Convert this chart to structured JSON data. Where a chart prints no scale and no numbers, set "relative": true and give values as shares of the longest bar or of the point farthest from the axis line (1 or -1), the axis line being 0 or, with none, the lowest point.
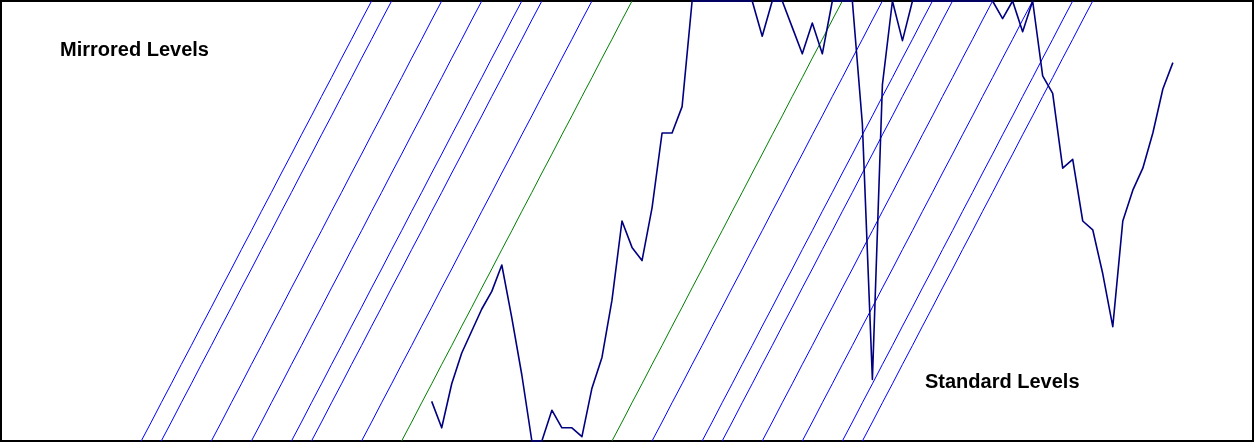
{
  "chart_data": {
    "type": "line",
    "relative": true,
    "annotations": [
      "Mirrored Levels",
      "Standard Levels"
    ],
    "categories": [
      null,
      null,
      null,
      null,
      null,
      null,
      null,
      null,
      null,
      null,
      null,
      null,
      null,
      null,
      null,
      null,
      null,
      null,
      null,
      null,
      null,
      null,
      null,
      null,
      null,
      null,
      null,
      null,
      null,
      null,
      null,
      null,
      null,
      null,
      null,
      null,
      null,
      null,
      null,
      null,
      null,
      null,
      null,
      null,
      null,
      null,
      null,
      null,
      null,
      null,
      null,
      null,
      null,
      null,
      null,
      null,
      null,
      null,
      null,
      null,
      null,
      null,
      null,
      null,
      null,
      null,
      null,
      null,
      null,
      null,
      null,
      null,
      null,
      null,
      null,
      null,
      null,
      null,
      null,
      null,
      null,
      null,
      null,
      null,
      null,
      null,
      null,
      null,
      null,
      null,
      null,
      null,
      null,
      null,
      null,
      null,
      null,
      null,
      null,
      null,
      null,
      null,
      null,
      null,
      null,
      null,
      null,
      null,
      null,
      null,
      null,
      null,
      null,
      null,
      null,
      null,
      null,
      null,
      null,
      null,
      null,
      null,
      null,
      null,
      null,
      null
    ],
    "series": [
      {
        "color": "#000080",
        "values": [
          null,
          null,
          null,
          null,
          null,
          null,
          null,
          null,
          null,
          null,
          null,
          null,
          null,
          null,
          null,
          null,
          null,
          null,
          null,
          null,
          null,
          null,
          null,
          null,
          null,
          null,
          null,
          null,
          null,
          null,
          null,
          null,
          null,
          null,
          null,
          null,
          null,
          null,
          null,
          null,
          null,
          null,
          null,
          0.09,
          0.03,
          0.13,
          0.2,
          0.25,
          0.3,
          0.34,
          0.4,
          0.28,
          0.15,
          0,
          0,
          0.07,
          0.03,
          0.03,
          0.01,
          0.12,
          0.19,
          0.32,
          0.5,
          0.44,
          0.41,
          0.53,
          0.7,
          0.7,
          0.76,
          1,
          1,
          1,
          1,
          1,
          1,
          1,
          0.92,
          1,
          1,
          0.94,
          0.88,
          0.95,
          0.88,
          1,
          1,
          1,
          0.72,
          0.14,
          0.81,
          1,
          0.91,
          1,
          1,
          1,
          1,
          1,
          1,
          1,
          1,
          1,
          0.96,
          1,
          0.93,
          1,
          0.83,
          0.79,
          0.62,
          0.64,
          0.5,
          0.48,
          0.38,
          0.26,
          0.5,
          0.57,
          0.62,
          0.7,
          0.8,
          0.86,
          null,
          null,
          null,
          null,
          null,
          null,
          null,
          null
        ]
      },
      {
        "color": "#0000ff",
        "values": [
          null,
          null,
          null,
          null,
          null,
          null,
          null,
          null,
          null,
          null,
          null,
          null,
          null,
          null,
          0,
          0.043,
          0.087,
          0.13,
          0.174,
          0.217,
          0.261,
          0.304,
          0.348,
          0.391,
          0.435,
          0.478,
          0.522,
          0.565,
          0.609,
          0.652,
          0.696,
          0.739,
          0.783,
          0.826,
          0.87,
          0.913,
          0.957,
          1,
          null,
          null,
          null,
          null,
          null,
          null,
          null,
          null,
          null,
          null,
          null,
          null,
          null,
          null,
          null,
          null,
          null,
          null,
          null,
          null,
          null,
          null,
          null,
          null,
          null,
          null,
          null,
          null,
          null,
          null,
          null,
          null,
          null,
          null,
          null,
          null,
          null,
          null,
          null,
          null,
          null,
          null,
          null,
          null,
          null,
          null,
          null,
          null,
          null,
          null,
          null,
          null,
          null,
          null,
          null,
          null,
          null,
          null,
          null,
          null,
          null,
          null,
          null,
          null,
          null,
          null,
          null,
          null,
          null,
          null,
          null,
          null,
          null,
          null,
          null,
          null,
          null,
          null,
          null,
          null,
          null,
          null,
          null,
          null,
          null,
          null,
          null,
          null
        ]
      },
      {
        "color": "#0000ff",
        "values": [
          null,
          null,
          null,
          null,
          null,
          null,
          null,
          null,
          null,
          null,
          null,
          null,
          null,
          null,
          null,
          null,
          0,
          0.043,
          0.087,
          0.13,
          0.174,
          0.217,
          0.261,
          0.304,
          0.348,
          0.391,
          0.435,
          0.478,
          0.522,
          0.565,
          0.609,
          0.652,
          0.696,
          0.739,
          0.783,
          0.826,
          0.87,
          0.913,
          0.957,
          1,
          null,
          null,
          null,
          null,
          null,
          null,
          null,
          null,
          null,
          null,
          null,
          null,
          null,
          null,
          null,
          null,
          null,
          null,
          null,
          null,
          null,
          null,
          null,
          null,
          null,
          null,
          null,
          null,
          null,
          null,
          null,
          null,
          null,
          null,
          null,
          null,
          null,
          null,
          null,
          null,
          null,
          null,
          null,
          null,
          null,
          null,
          null,
          null,
          null,
          null,
          null,
          null,
          null,
          null,
          null,
          null,
          null,
          null,
          null,
          null,
          null,
          null,
          null,
          null,
          null,
          null,
          null,
          null,
          null,
          null,
          null,
          null,
          null,
          null,
          null,
          null,
          null,
          null,
          null,
          null,
          null,
          null,
          null,
          null,
          null,
          null
        ]
      },
      {
        "color": "#0000ff",
        "values": [
          null,
          null,
          null,
          null,
          null,
          null,
          null,
          null,
          null,
          null,
          null,
          null,
          null,
          null,
          null,
          null,
          null,
          null,
          null,
          null,
          null,
          0,
          0.043,
          0.087,
          0.13,
          0.174,
          0.217,
          0.261,
          0.304,
          0.348,
          0.391,
          0.435,
          0.478,
          0.522,
          0.565,
          0.609,
          0.652,
          0.696,
          0.739,
          0.783,
          0.826,
          0.87,
          0.913,
          0.957,
          1,
          null,
          null,
          null,
          null,
          null,
          null,
          null,
          null,
          null,
          null,
          null,
          null,
          null,
          null,
          null,
          null,
          null,
          null,
          null,
          null,
          null,
          null,
          null,
          null,
          null,
          null,
          null,
          null,
          null,
          null,
          null,
          null,
          null,
          null,
          null,
          null,
          null,
          null,
          null,
          null,
          null,
          null,
          null,
          null,
          null,
          null,
          null,
          null,
          null,
          null,
          null,
          null,
          null,
          null,
          null,
          null,
          null,
          null,
          null,
          null,
          null,
          null,
          null,
          null,
          null,
          null,
          null,
          null,
          null,
          null,
          null,
          null,
          null,
          null,
          null,
          null,
          null,
          null,
          null,
          null,
          null
        ]
      },
      {
        "color": "#0000ff",
        "values": [
          null,
          null,
          null,
          null,
          null,
          null,
          null,
          null,
          null,
          null,
          null,
          null,
          null,
          null,
          null,
          null,
          null,
          null,
          null,
          null,
          null,
          null,
          null,
          null,
          null,
          0,
          0.043,
          0.087,
          0.13,
          0.174,
          0.217,
          0.261,
          0.304,
          0.348,
          0.391,
          0.435,
          0.478,
          0.522,
          0.565,
          0.609,
          0.652,
          0.696,
          0.739,
          0.783,
          0.826,
          0.87,
          0.913,
          0.957,
          1,
          null,
          null,
          null,
          null,
          null,
          null,
          null,
          null,
          null,
          null,
          null,
          null,
          null,
          null,
          null,
          null,
          null,
          null,
          null,
          null,
          null,
          null,
          null,
          null,
          null,
          null,
          null,
          null,
          null,
          null,
          null,
          null,
          null,
          null,
          null,
          null,
          null,
          null,
          null,
          null,
          null,
          null,
          null,
          null,
          null,
          null,
          null,
          null,
          null,
          null,
          null,
          null,
          null,
          null,
          null,
          null,
          null,
          null,
          null,
          null,
          null,
          null,
          null,
          null,
          null,
          null,
          null,
          null,
          null,
          null,
          null,
          null,
          null,
          null,
          null,
          null,
          null
        ]
      },
      {
        "color": "#0000ff",
        "values": [
          null,
          null,
          null,
          null,
          null,
          null,
          null,
          null,
          null,
          null,
          null,
          null,
          null,
          null,
          null,
          null,
          null,
          null,
          null,
          null,
          null,
          null,
          null,
          null,
          null,
          null,
          null,
          null,
          null,
          0,
          0.043,
          0.087,
          0.13,
          0.174,
          0.217,
          0.261,
          0.304,
          0.348,
          0.391,
          0.435,
          0.478,
          0.522,
          0.565,
          0.609,
          0.652,
          0.696,
          0.739,
          0.783,
          0.826,
          0.87,
          0.913,
          0.957,
          1,
          null,
          null,
          null,
          null,
          null,
          null,
          null,
          null,
          null,
          null,
          null,
          null,
          null,
          null,
          null,
          null,
          null,
          null,
          null,
          null,
          null,
          null,
          null,
          null,
          null,
          null,
          null,
          null,
          null,
          null,
          null,
          null,
          null,
          null,
          null,
          null,
          null,
          null,
          null,
          null,
          null,
          null,
          null,
          null,
          null,
          null,
          null,
          null,
          null,
          null,
          null,
          null,
          null,
          null,
          null,
          null,
          null,
          null,
          null,
          null,
          null,
          null,
          null,
          null,
          null,
          null,
          null,
          null,
          null,
          null,
          null,
          null,
          null
        ]
      },
      {
        "color": "#0000ff",
        "values": [
          null,
          null,
          null,
          null,
          null,
          null,
          null,
          null,
          null,
          null,
          null,
          null,
          null,
          null,
          null,
          null,
          null,
          null,
          null,
          null,
          null,
          null,
          null,
          null,
          null,
          null,
          null,
          null,
          null,
          null,
          null,
          0,
          0.043,
          0.087,
          0.13,
          0.174,
          0.217,
          0.261,
          0.304,
          0.348,
          0.391,
          0.435,
          0.478,
          0.522,
          0.565,
          0.609,
          0.652,
          0.696,
          0.739,
          0.783,
          0.826,
          0.87,
          0.913,
          0.957,
          1,
          null,
          null,
          null,
          null,
          null,
          null,
          null,
          null,
          null,
          null,
          null,
          null,
          null,
          null,
          null,
          null,
          null,
          null,
          null,
          null,
          null,
          null,
          null,
          null,
          null,
          null,
          null,
          null,
          null,
          null,
          null,
          null,
          null,
          null,
          null,
          null,
          null,
          null,
          null,
          null,
          null,
          null,
          null,
          null,
          null,
          null,
          null,
          null,
          null,
          null,
          null,
          null,
          null,
          null,
          null,
          null,
          null,
          null,
          null,
          null,
          null,
          null,
          null,
          null,
          null,
          null,
          null,
          null,
          null,
          null,
          null
        ]
      },
      {
        "color": "#0000ff",
        "values": [
          null,
          null,
          null,
          null,
          null,
          null,
          null,
          null,
          null,
          null,
          null,
          null,
          null,
          null,
          null,
          null,
          null,
          null,
          null,
          null,
          null,
          null,
          null,
          null,
          null,
          null,
          null,
          null,
          null,
          null,
          null,
          null,
          null,
          null,
          null,
          null,
          0,
          0.043,
          0.087,
          0.13,
          0.174,
          0.217,
          0.261,
          0.304,
          0.348,
          0.391,
          0.435,
          0.478,
          0.522,
          0.565,
          0.609,
          0.652,
          0.696,
          0.739,
          0.783,
          0.826,
          0.87,
          0.913,
          0.957,
          1,
          null,
          null,
          null,
          null,
          null,
          null,
          null,
          null,
          null,
          null,
          null,
          null,
          null,
          null,
          null,
          null,
          null,
          null,
          null,
          null,
          null,
          null,
          null,
          null,
          null,
          null,
          null,
          null,
          null,
          null,
          null,
          null,
          null,
          null,
          null,
          null,
          null,
          null,
          null,
          null,
          null,
          null,
          null,
          null,
          null,
          null,
          null,
          null,
          null,
          null,
          null,
          null,
          null,
          null,
          null,
          null,
          null,
          null,
          null,
          null,
          null,
          null,
          null,
          null,
          null,
          null
        ]
      },
      {
        "color": "#008000",
        "values": [
          null,
          null,
          null,
          null,
          null,
          null,
          null,
          null,
          null,
          null,
          null,
          null,
          null,
          null,
          null,
          null,
          null,
          null,
          null,
          null,
          null,
          null,
          null,
          null,
          null,
          null,
          null,
          null,
          null,
          null,
          null,
          null,
          null,
          null,
          null,
          null,
          null,
          null,
          null,
          null,
          0,
          0.043,
          0.087,
          0.13,
          0.174,
          0.217,
          0.261,
          0.304,
          0.348,
          0.391,
          0.435,
          0.478,
          0.522,
          0.565,
          0.609,
          0.652,
          0.696,
          0.739,
          0.783,
          0.826,
          0.87,
          0.913,
          0.957,
          1,
          null,
          null,
          null,
          null,
          null,
          null,
          null,
          null,
          null,
          null,
          null,
          null,
          null,
          null,
          null,
          null,
          null,
          null,
          null,
          null,
          null,
          null,
          null,
          null,
          null,
          null,
          null,
          null,
          null,
          null,
          null,
          null,
          null,
          null,
          null,
          null,
          null,
          null,
          null,
          null,
          null,
          null,
          null,
          null,
          null,
          null,
          null,
          null,
          null,
          null,
          null,
          null,
          null,
          null,
          null,
          null,
          null,
          null,
          null,
          null,
          null,
          null
        ]
      },
      {
        "color": "#008000",
        "values": [
          null,
          null,
          null,
          null,
          null,
          null,
          null,
          null,
          null,
          null,
          null,
          null,
          null,
          null,
          null,
          null,
          null,
          null,
          null,
          null,
          null,
          null,
          null,
          null,
          null,
          null,
          null,
          null,
          null,
          null,
          null,
          null,
          null,
          null,
          null,
          null,
          null,
          null,
          null,
          null,
          null,
          null,
          null,
          null,
          null,
          null,
          null,
          null,
          null,
          null,
          null,
          null,
          null,
          null,
          null,
          null,
          null,
          null,
          null,
          null,
          null,
          0,
          0.043,
          0.087,
          0.13,
          0.174,
          0.217,
          0.261,
          0.304,
          0.348,
          0.391,
          0.435,
          0.478,
          0.522,
          0.565,
          0.609,
          0.652,
          0.696,
          0.739,
          0.783,
          0.826,
          0.87,
          0.913,
          0.957,
          1,
          null,
          null,
          null,
          null,
          null,
          null,
          null,
          null,
          null,
          null,
          null,
          null,
          null,
          null,
          null,
          null,
          null,
          null,
          null,
          null,
          null,
          null,
          null,
          null,
          null,
          null,
          null,
          null,
          null,
          null,
          null,
          null,
          null,
          null,
          null,
          null,
          null,
          null,
          null,
          null,
          null
        ]
      },
      {
        "color": "#0000ff",
        "values": [
          null,
          null,
          null,
          null,
          null,
          null,
          null,
          null,
          null,
          null,
          null,
          null,
          null,
          null,
          null,
          null,
          null,
          null,
          null,
          null,
          null,
          null,
          null,
          null,
          null,
          null,
          null,
          null,
          null,
          null,
          null,
          null,
          null,
          null,
          null,
          null,
          null,
          null,
          null,
          null,
          null,
          null,
          null,
          null,
          null,
          null,
          null,
          null,
          null,
          null,
          null,
          null,
          null,
          null,
          null,
          null,
          null,
          null,
          null,
          null,
          null,
          null,
          null,
          null,
          null,
          0,
          0.043,
          0.087,
          0.13,
          0.174,
          0.217,
          0.261,
          0.304,
          0.348,
          0.391,
          0.435,
          0.478,
          0.522,
          0.565,
          0.609,
          0.652,
          0.696,
          0.739,
          0.783,
          0.826,
          0.87,
          0.913,
          0.957,
          1,
          null,
          null,
          null,
          null,
          null,
          null,
          null,
          null,
          null,
          null,
          null,
          null,
          null,
          null,
          null,
          null,
          null,
          null,
          null,
          null,
          null,
          null,
          null,
          null,
          null,
          null,
          null,
          null,
          null,
          null,
          null,
          null,
          null,
          null,
          null,
          null,
          null
        ]
      },
      {
        "color": "#0000ff",
        "values": [
          null,
          null,
          null,
          null,
          null,
          null,
          null,
          null,
          null,
          null,
          null,
          null,
          null,
          null,
          null,
          null,
          null,
          null,
          null,
          null,
          null,
          null,
          null,
          null,
          null,
          null,
          null,
          null,
          null,
          null,
          null,
          null,
          null,
          null,
          null,
          null,
          null,
          null,
          null,
          null,
          null,
          null,
          null,
          null,
          null,
          null,
          null,
          null,
          null,
          null,
          null,
          null,
          null,
          null,
          null,
          null,
          null,
          null,
          null,
          null,
          null,
          null,
          null,
          null,
          null,
          null,
          null,
          null,
          null,
          null,
          0,
          0.043,
          0.087,
          0.13,
          0.174,
          0.217,
          0.261,
          0.304,
          0.348,
          0.391,
          0.435,
          0.478,
          0.522,
          0.565,
          0.609,
          0.652,
          0.696,
          0.739,
          0.783,
          0.826,
          0.87,
          0.913,
          0.957,
          1,
          null,
          null,
          null,
          null,
          null,
          null,
          null,
          null,
          null,
          null,
          null,
          null,
          null,
          null,
          null,
          null,
          null,
          null,
          null,
          null,
          null,
          null,
          null,
          null,
          null,
          null,
          null,
          null,
          null,
          null,
          null,
          null
        ]
      },
      {
        "color": "#0000ff",
        "values": [
          null,
          null,
          null,
          null,
          null,
          null,
          null,
          null,
          null,
          null,
          null,
          null,
          null,
          null,
          null,
          null,
          null,
          null,
          null,
          null,
          null,
          null,
          null,
          null,
          null,
          null,
          null,
          null,
          null,
          null,
          null,
          null,
          null,
          null,
          null,
          null,
          null,
          null,
          null,
          null,
          null,
          null,
          null,
          null,
          null,
          null,
          null,
          null,
          null,
          null,
          null,
          null,
          null,
          null,
          null,
          null,
          null,
          null,
          null,
          null,
          null,
          null,
          null,
          null,
          null,
          null,
          null,
          null,
          null,
          null,
          null,
          null,
          0,
          0.043,
          0.087,
          0.13,
          0.174,
          0.217,
          0.261,
          0.304,
          0.348,
          0.391,
          0.435,
          0.478,
          0.522,
          0.565,
          0.609,
          0.652,
          0.696,
          0.739,
          0.783,
          0.826,
          0.87,
          0.913,
          0.957,
          1,
          null,
          null,
          null,
          null,
          null,
          null,
          null,
          null,
          null,
          null,
          null,
          null,
          null,
          null,
          null,
          null,
          null,
          null,
          null,
          null,
          null,
          null,
          null,
          null,
          null,
          null,
          null,
          null,
          null,
          null
        ]
      },
      {
        "color": "#0000ff",
        "values": [
          null,
          null,
          null,
          null,
          null,
          null,
          null,
          null,
          null,
          null,
          null,
          null,
          null,
          null,
          null,
          null,
          null,
          null,
          null,
          null,
          null,
          null,
          null,
          null,
          null,
          null,
          null,
          null,
          null,
          null,
          null,
          null,
          null,
          null,
          null,
          null,
          null,
          null,
          null,
          null,
          null,
          null,
          null,
          null,
          null,
          null,
          null,
          null,
          null,
          null,
          null,
          null,
          null,
          null,
          null,
          null,
          null,
          null,
          null,
          null,
          null,
          null,
          null,
          null,
          null,
          null,
          null,
          null,
          null,
          null,
          null,
          null,
          null,
          null,
          null,
          null,
          0,
          0.043,
          0.087,
          0.13,
          0.174,
          0.217,
          0.261,
          0.304,
          0.348,
          0.391,
          0.435,
          0.478,
          0.522,
          0.565,
          0.609,
          0.652,
          0.696,
          0.739,
          0.783,
          0.826,
          0.87,
          0.913,
          0.957,
          1,
          null,
          null,
          null,
          null,
          null,
          null,
          null,
          null,
          null,
          null,
          null,
          null,
          null,
          null,
          null,
          null,
          null,
          null,
          null,
          null,
          null,
          null,
          null,
          null,
          null,
          null
        ]
      },
      {
        "color": "#0000ff",
        "values": [
          null,
          null,
          null,
          null,
          null,
          null,
          null,
          null,
          null,
          null,
          null,
          null,
          null,
          null,
          null,
          null,
          null,
          null,
          null,
          null,
          null,
          null,
          null,
          null,
          null,
          null,
          null,
          null,
          null,
          null,
          null,
          null,
          null,
          null,
          null,
          null,
          null,
          null,
          null,
          null,
          null,
          null,
          null,
          null,
          null,
          null,
          null,
          null,
          null,
          null,
          null,
          null,
          null,
          null,
          null,
          null,
          null,
          null,
          null,
          null,
          null,
          null,
          null,
          null,
          null,
          null,
          null,
          null,
          null,
          null,
          null,
          null,
          null,
          null,
          null,
          null,
          null,
          null,
          null,
          null,
          0,
          0.043,
          0.087,
          0.13,
          0.174,
          0.217,
          0.261,
          0.304,
          0.348,
          0.391,
          0.435,
          0.478,
          0.522,
          0.565,
          0.609,
          0.652,
          0.696,
          0.739,
          0.783,
          0.826,
          0.87,
          0.913,
          0.957,
          1,
          null,
          null,
          null,
          null,
          null,
          null,
          null,
          null,
          null,
          null,
          null,
          null,
          null,
          null,
          null,
          null,
          null,
          null,
          null,
          null,
          null,
          null
        ]
      },
      {
        "color": "#0000ff",
        "values": [
          null,
          null,
          null,
          null,
          null,
          null,
          null,
          null,
          null,
          null,
          null,
          null,
          null,
          null,
          null,
          null,
          null,
          null,
          null,
          null,
          null,
          null,
          null,
          null,
          null,
          null,
          null,
          null,
          null,
          null,
          null,
          null,
          null,
          null,
          null,
          null,
          null,
          null,
          null,
          null,
          null,
          null,
          null,
          null,
          null,
          null,
          null,
          null,
          null,
          null,
          null,
          null,
          null,
          null,
          null,
          null,
          null,
          null,
          null,
          null,
          null,
          null,
          null,
          null,
          null,
          null,
          null,
          null,
          null,
          null,
          null,
          null,
          null,
          null,
          null,
          null,
          null,
          null,
          null,
          null,
          null,
          null,
          null,
          null,
          0,
          0.043,
          0.087,
          0.13,
          0.174,
          0.217,
          0.261,
          0.304,
          0.348,
          0.391,
          0.435,
          0.478,
          0.522,
          0.565,
          0.609,
          0.652,
          0.696,
          0.739,
          0.783,
          0.826,
          0.87,
          0.913,
          0.957,
          1,
          null,
          null,
          null,
          null,
          null,
          null,
          null,
          null,
          null,
          null,
          null,
          null,
          null,
          null,
          null,
          null,
          null,
          null
        ]
      },
      {
        "color": "#0000ff",
        "values": [
          null,
          null,
          null,
          null,
          null,
          null,
          null,
          null,
          null,
          null,
          null,
          null,
          null,
          null,
          null,
          null,
          null,
          null,
          null,
          null,
          null,
          null,
          null,
          null,
          null,
          null,
          null,
          null,
          null,
          null,
          null,
          null,
          null,
          null,
          null,
          null,
          null,
          null,
          null,
          null,
          null,
          null,
          null,
          null,
          null,
          null,
          null,
          null,
          null,
          null,
          null,
          null,
          null,
          null,
          null,
          null,
          null,
          null,
          null,
          null,
          null,
          null,
          null,
          null,
          null,
          null,
          null,
          null,
          null,
          null,
          null,
          null,
          null,
          null,
          null,
          null,
          null,
          null,
          null,
          null,
          null,
          null,
          null,
          null,
          null,
          null,
          0,
          0.043,
          0.087,
          0.13,
          0.174,
          0.217,
          0.261,
          0.304,
          0.348,
          0.391,
          0.435,
          0.478,
          0.522,
          0.565,
          0.609,
          0.652,
          0.696,
          0.739,
          0.783,
          0.826,
          0.87,
          0.913,
          0.957,
          1,
          null,
          null,
          null,
          null,
          null,
          null,
          null,
          null,
          null,
          null,
          null,
          null,
          null,
          null,
          null,
          null
        ]
      }
    ]
  }
}
